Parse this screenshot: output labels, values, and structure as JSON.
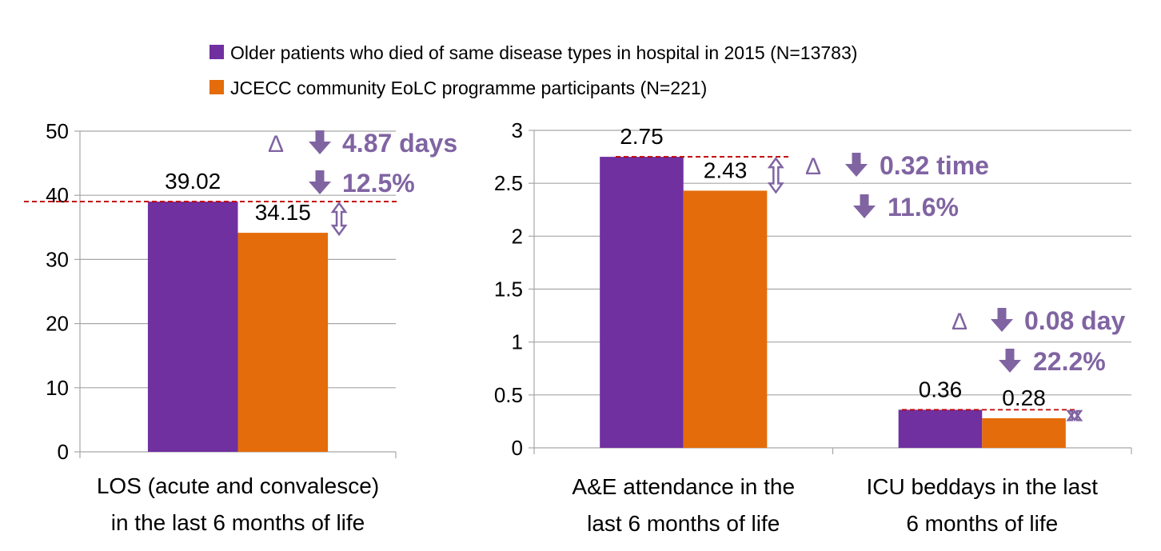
{
  "legend": [
    {
      "label": "Older patients who died of same disease types in hospital in 2015 (N=13783)",
      "color": "#7030A0"
    },
    {
      "label": "JCECC community EoLC programme participants (N=221)",
      "color": "#E46C0A"
    }
  ],
  "annotation_color": "#8064A2",
  "reference_line_color": "#C00000",
  "chart_data": [
    {
      "type": "bar",
      "categories": [
        "LOS (acute and convalesce) in the last 6 months of life"
      ],
      "category_lines": [
        [
          "LOS (acute and convalesce)",
          "in the last 6 months of life"
        ]
      ],
      "series": [
        {
          "name": "Older patients who died of same disease types in hospital in 2015 (N=13783)",
          "values": [
            39.02
          ]
        },
        {
          "name": "JCECC community EoLC programme participants (N=221)",
          "values": [
            34.15
          ]
        }
      ],
      "value_labels": [
        [
          "39.02"
        ],
        [
          "34.15"
        ]
      ],
      "ylim": [
        0,
        50
      ],
      "yticks": [
        0,
        10,
        20,
        30,
        40,
        50
      ],
      "ytick_labels": [
        "0",
        "10",
        "20",
        "30",
        "40",
        "50"
      ],
      "grid": true,
      "annotations": [
        {
          "delta": "Δ",
          "change": "4.87 days",
          "percent": "12.5%"
        }
      ]
    },
    {
      "type": "bar",
      "categories": [
        "A&E attendance in the last 6 months of life",
        "ICU beddays in the last 6 months of life"
      ],
      "category_lines": [
        [
          "A&E attendance in the",
          "last 6 months of life"
        ],
        [
          "ICU beddays in the last",
          "6 months of life"
        ]
      ],
      "series": [
        {
          "name": "Older patients who died of same disease types in hospital in 2015 (N=13783)",
          "values": [
            2.75,
            0.36
          ]
        },
        {
          "name": "JCECC community EoLC programme participants (N=221)",
          "values": [
            2.43,
            0.28
          ]
        }
      ],
      "value_labels": [
        [
          "2.75",
          "0.36"
        ],
        [
          "2.43",
          "0.28"
        ]
      ],
      "ylim": [
        0,
        3
      ],
      "yticks": [
        0,
        0.5,
        1,
        1.5,
        2,
        2.5,
        3
      ],
      "ytick_labels": [
        "0",
        "0.5",
        "1",
        "1.5",
        "2",
        "2.5",
        "3"
      ],
      "grid": true,
      "annotations": [
        {
          "delta": "Δ",
          "change": "0.32 time",
          "percent": "11.6%"
        },
        {
          "delta": "Δ",
          "change": "0.08 day",
          "percent": "22.2%"
        }
      ]
    }
  ]
}
